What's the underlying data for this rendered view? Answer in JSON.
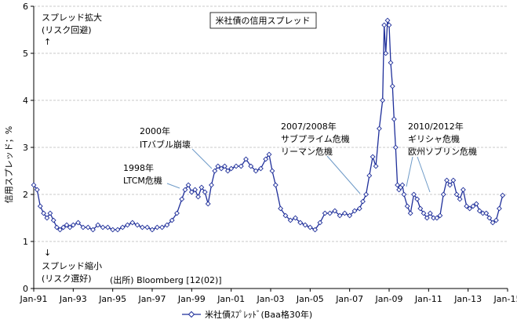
{
  "chart_data": {
    "type": "line",
    "title": "米社債の信用スプレッド",
    "ylabel": "信用スプレッド；%",
    "xlabel": "",
    "ylim": [
      0,
      6
    ],
    "yticks": [
      "0",
      "1",
      "2",
      "3",
      "4",
      "5",
      "6"
    ],
    "xlim": [
      1991.0,
      2015.0
    ],
    "xticks": [
      {
        "label": "Jan-91",
        "x": 1991
      },
      {
        "label": "Jan-93",
        "x": 1993
      },
      {
        "label": "Jan-95",
        "x": 1995
      },
      {
        "label": "Jan-97",
        "x": 1997
      },
      {
        "label": "Jan-99",
        "x": 1999
      },
      {
        "label": "Jan-01",
        "x": 2001
      },
      {
        "label": "Jan-03",
        "x": 2003
      },
      {
        "label": "Jan-05",
        "x": 2005
      },
      {
        "label": "Jan-07",
        "x": 2007
      },
      {
        "label": "Jan-09",
        "x": 2009
      },
      {
        "label": "Jan-11",
        "x": 2011
      },
      {
        "label": "Jan-13",
        "x": 2013
      },
      {
        "label": "Jan-15",
        "x": 2015
      }
    ],
    "grid": "horizontal",
    "legend_position": "bottom",
    "series": [
      {
        "name": "米社債ｽﾌﾟﾚｯﾄﾞ(Baa格30年)",
        "color": "#1f2f9a",
        "x": [
          1991.0,
          1991.17,
          1991.33,
          1991.5,
          1991.67,
          1991.83,
          1992.0,
          1992.17,
          1992.33,
          1992.5,
          1992.67,
          1992.83,
          1993.0,
          1993.25,
          1993.5,
          1993.75,
          1994.0,
          1994.25,
          1994.5,
          1994.75,
          1995.0,
          1995.25,
          1995.5,
          1995.75,
          1996.0,
          1996.25,
          1996.5,
          1996.75,
          1997.0,
          1997.25,
          1997.5,
          1997.75,
          1998.0,
          1998.25,
          1998.5,
          1998.67,
          1998.83,
          1999.0,
          1999.17,
          1999.33,
          1999.5,
          1999.67,
          1999.83,
          2000.0,
          2000.17,
          2000.33,
          2000.5,
          2000.67,
          2000.83,
          2001.0,
          2001.25,
          2001.5,
          2001.75,
          2002.0,
          2002.25,
          2002.5,
          2002.75,
          2002.92,
          2003.08,
          2003.25,
          2003.5,
          2003.75,
          2004.0,
          2004.25,
          2004.5,
          2004.75,
          2005.0,
          2005.25,
          2005.5,
          2005.75,
          2006.0,
          2006.25,
          2006.5,
          2006.75,
          2007.0,
          2007.25,
          2007.5,
          2007.67,
          2007.83,
          2008.0,
          2008.17,
          2008.33,
          2008.5,
          2008.67,
          2008.75,
          2008.83,
          2008.92,
          2009.0,
          2009.08,
          2009.17,
          2009.25,
          2009.33,
          2009.42,
          2009.5,
          2009.58,
          2009.67,
          2009.75,
          2009.92,
          2010.08,
          2010.25,
          2010.42,
          2010.58,
          2010.75,
          2010.92,
          2011.08,
          2011.25,
          2011.42,
          2011.58,
          2011.75,
          2011.92,
          2012.08,
          2012.25,
          2012.42,
          2012.58,
          2012.75,
          2012.92,
          2013.08,
          2013.25,
          2013.42,
          2013.58,
          2013.75,
          2013.92,
          2014.08,
          2014.25,
          2014.42,
          2014.58,
          2014.75
        ],
        "values": [
          2.2,
          2.1,
          1.75,
          1.6,
          1.5,
          1.6,
          1.45,
          1.3,
          1.25,
          1.3,
          1.35,
          1.3,
          1.35,
          1.4,
          1.3,
          1.3,
          1.25,
          1.35,
          1.3,
          1.3,
          1.25,
          1.25,
          1.3,
          1.35,
          1.4,
          1.35,
          1.3,
          1.3,
          1.25,
          1.3,
          1.3,
          1.35,
          1.45,
          1.6,
          1.9,
          2.1,
          2.2,
          2.05,
          2.1,
          1.95,
          2.15,
          2.05,
          1.8,
          2.2,
          2.5,
          2.6,
          2.55,
          2.6,
          2.5,
          2.55,
          2.6,
          2.6,
          2.75,
          2.6,
          2.5,
          2.55,
          2.75,
          2.85,
          2.5,
          2.2,
          1.7,
          1.55,
          1.45,
          1.5,
          1.4,
          1.35,
          1.3,
          1.25,
          1.4,
          1.6,
          1.6,
          1.65,
          1.55,
          1.6,
          1.55,
          1.65,
          1.7,
          1.85,
          2.0,
          2.4,
          2.8,
          2.6,
          3.4,
          4.0,
          5.6,
          5.0,
          5.7,
          5.6,
          4.8,
          4.3,
          3.6,
          3.0,
          2.2,
          2.1,
          2.15,
          2.2,
          2.0,
          1.75,
          1.6,
          2.0,
          1.9,
          1.7,
          1.6,
          1.5,
          1.6,
          1.5,
          1.5,
          1.55,
          2.0,
          2.3,
          2.2,
          2.3,
          2.0,
          1.9,
          2.1,
          1.75,
          1.7,
          1.75,
          1.8,
          1.65,
          1.6,
          1.6,
          1.5,
          1.4,
          1.45,
          1.7,
          1.98
        ]
      }
    ],
    "annotations": [
      {
        "id": "widen",
        "lines": [
          "スプレッド拡大",
          "(リスク回避)",
          "↑"
        ]
      },
      {
        "id": "narrow",
        "lines": [
          "↓",
          "スプレッド縮小",
          "(リスク選好)"
        ]
      },
      {
        "id": "source",
        "lines": [
          "(出所) Bloomberg [12(02)]"
        ]
      },
      {
        "id": "ev1998",
        "lines": [
          "1998年",
          "LTCM危機"
        ]
      },
      {
        "id": "ev2000",
        "lines": [
          "2000年",
          "ITバブル崩壊"
        ]
      },
      {
        "id": "ev2007",
        "lines": [
          "2007/2008年",
          "サブプライム危機",
          "リーマン危機"
        ]
      },
      {
        "id": "ev2010",
        "lines": [
          "2010/2012年",
          "ギリシャ危機",
          "欧州ソブリン危機"
        ]
      }
    ]
  }
}
